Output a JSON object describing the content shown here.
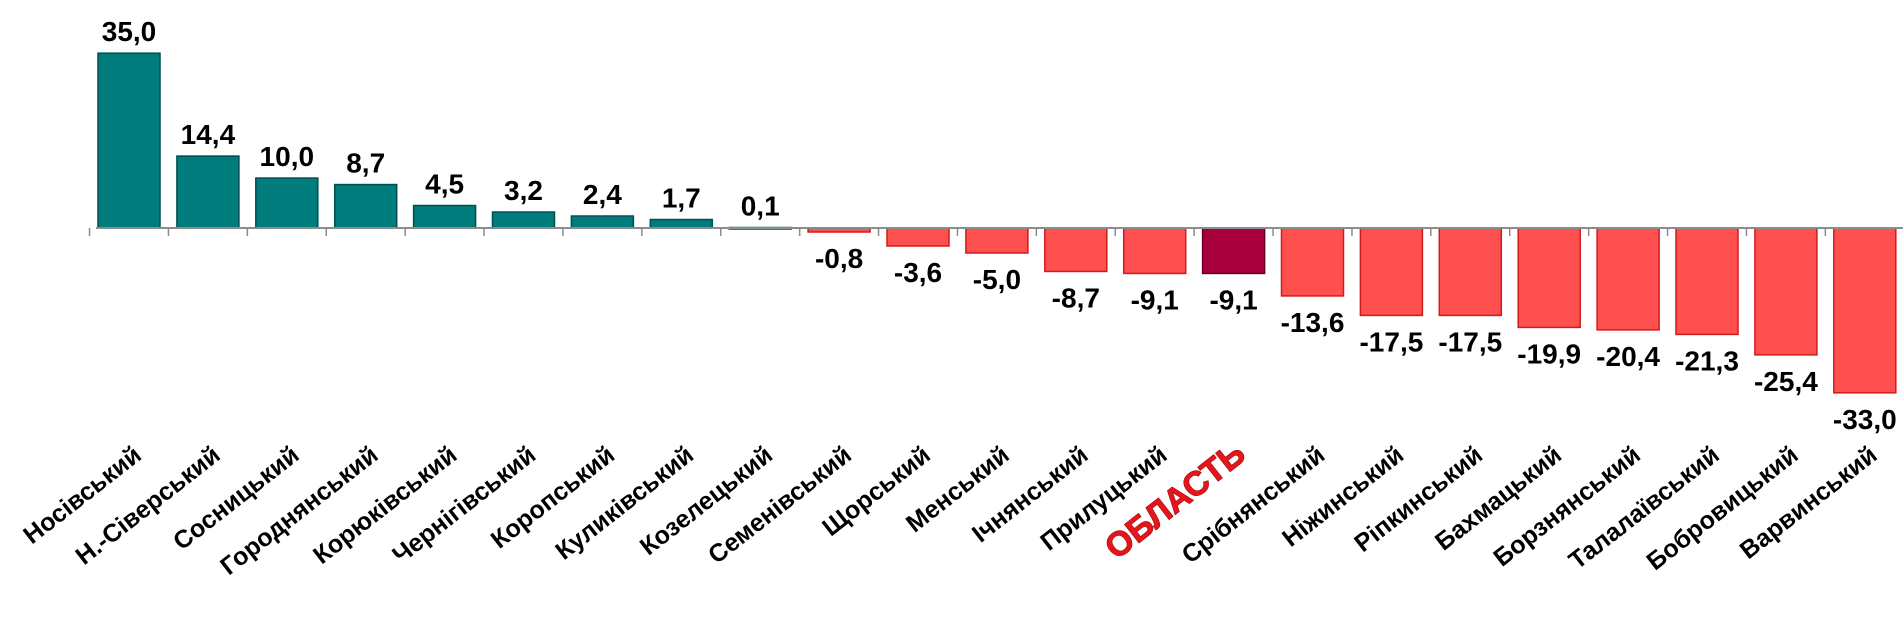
{
  "title": "",
  "colors": {
    "positive": "#007c7c",
    "negative": "#ff5050",
    "highlight": "#a8003c",
    "highlight_label": "#e8141c",
    "axis": "#8c8c8c"
  },
  "chart_data": {
    "type": "bar",
    "categories": [
      "Носівський",
      "Н.-Сіверський",
      "Сосницький",
      "Городнянський",
      "Корюківський",
      "Чернігівський",
      "Коропський",
      "Куликівський",
      "Козелецький",
      "Семенівський",
      "Щорський",
      "Менський",
      "Ічнянський",
      "Прилуцький",
      "ОБЛАСТЬ",
      "Срібнянський",
      "Ніжинський",
      "Ріпкинський",
      "Бахмацький",
      "Борзнянський",
      "Талалаївський",
      "Бобровицький",
      "Варвинський"
    ],
    "values": [
      35.0,
      14.4,
      10.0,
      8.7,
      4.5,
      3.2,
      2.4,
      1.7,
      0.1,
      -0.8,
      -3.6,
      -5.0,
      -8.7,
      -9.1,
      -9.1,
      -13.6,
      -17.5,
      -17.5,
      -19.9,
      -20.4,
      -21.3,
      -25.4,
      -33.0
    ],
    "value_labels": [
      "35,0",
      "14,4",
      "10,0",
      "8,7",
      "4,5",
      "3,2",
      "2,4",
      "1,7",
      "0,1",
      "-0,8",
      "-3,6",
      "-5,0",
      "-8,7",
      "-9,1",
      "-9,1",
      "-13,6",
      "-17,5",
      "-17,5",
      "-19,9",
      "-20,4",
      "-21,3",
      "-25,4",
      "-33,0"
    ],
    "highlight_index": 14,
    "ylim": [
      -33.0,
      35.0
    ],
    "grid": false,
    "legend": "none"
  }
}
